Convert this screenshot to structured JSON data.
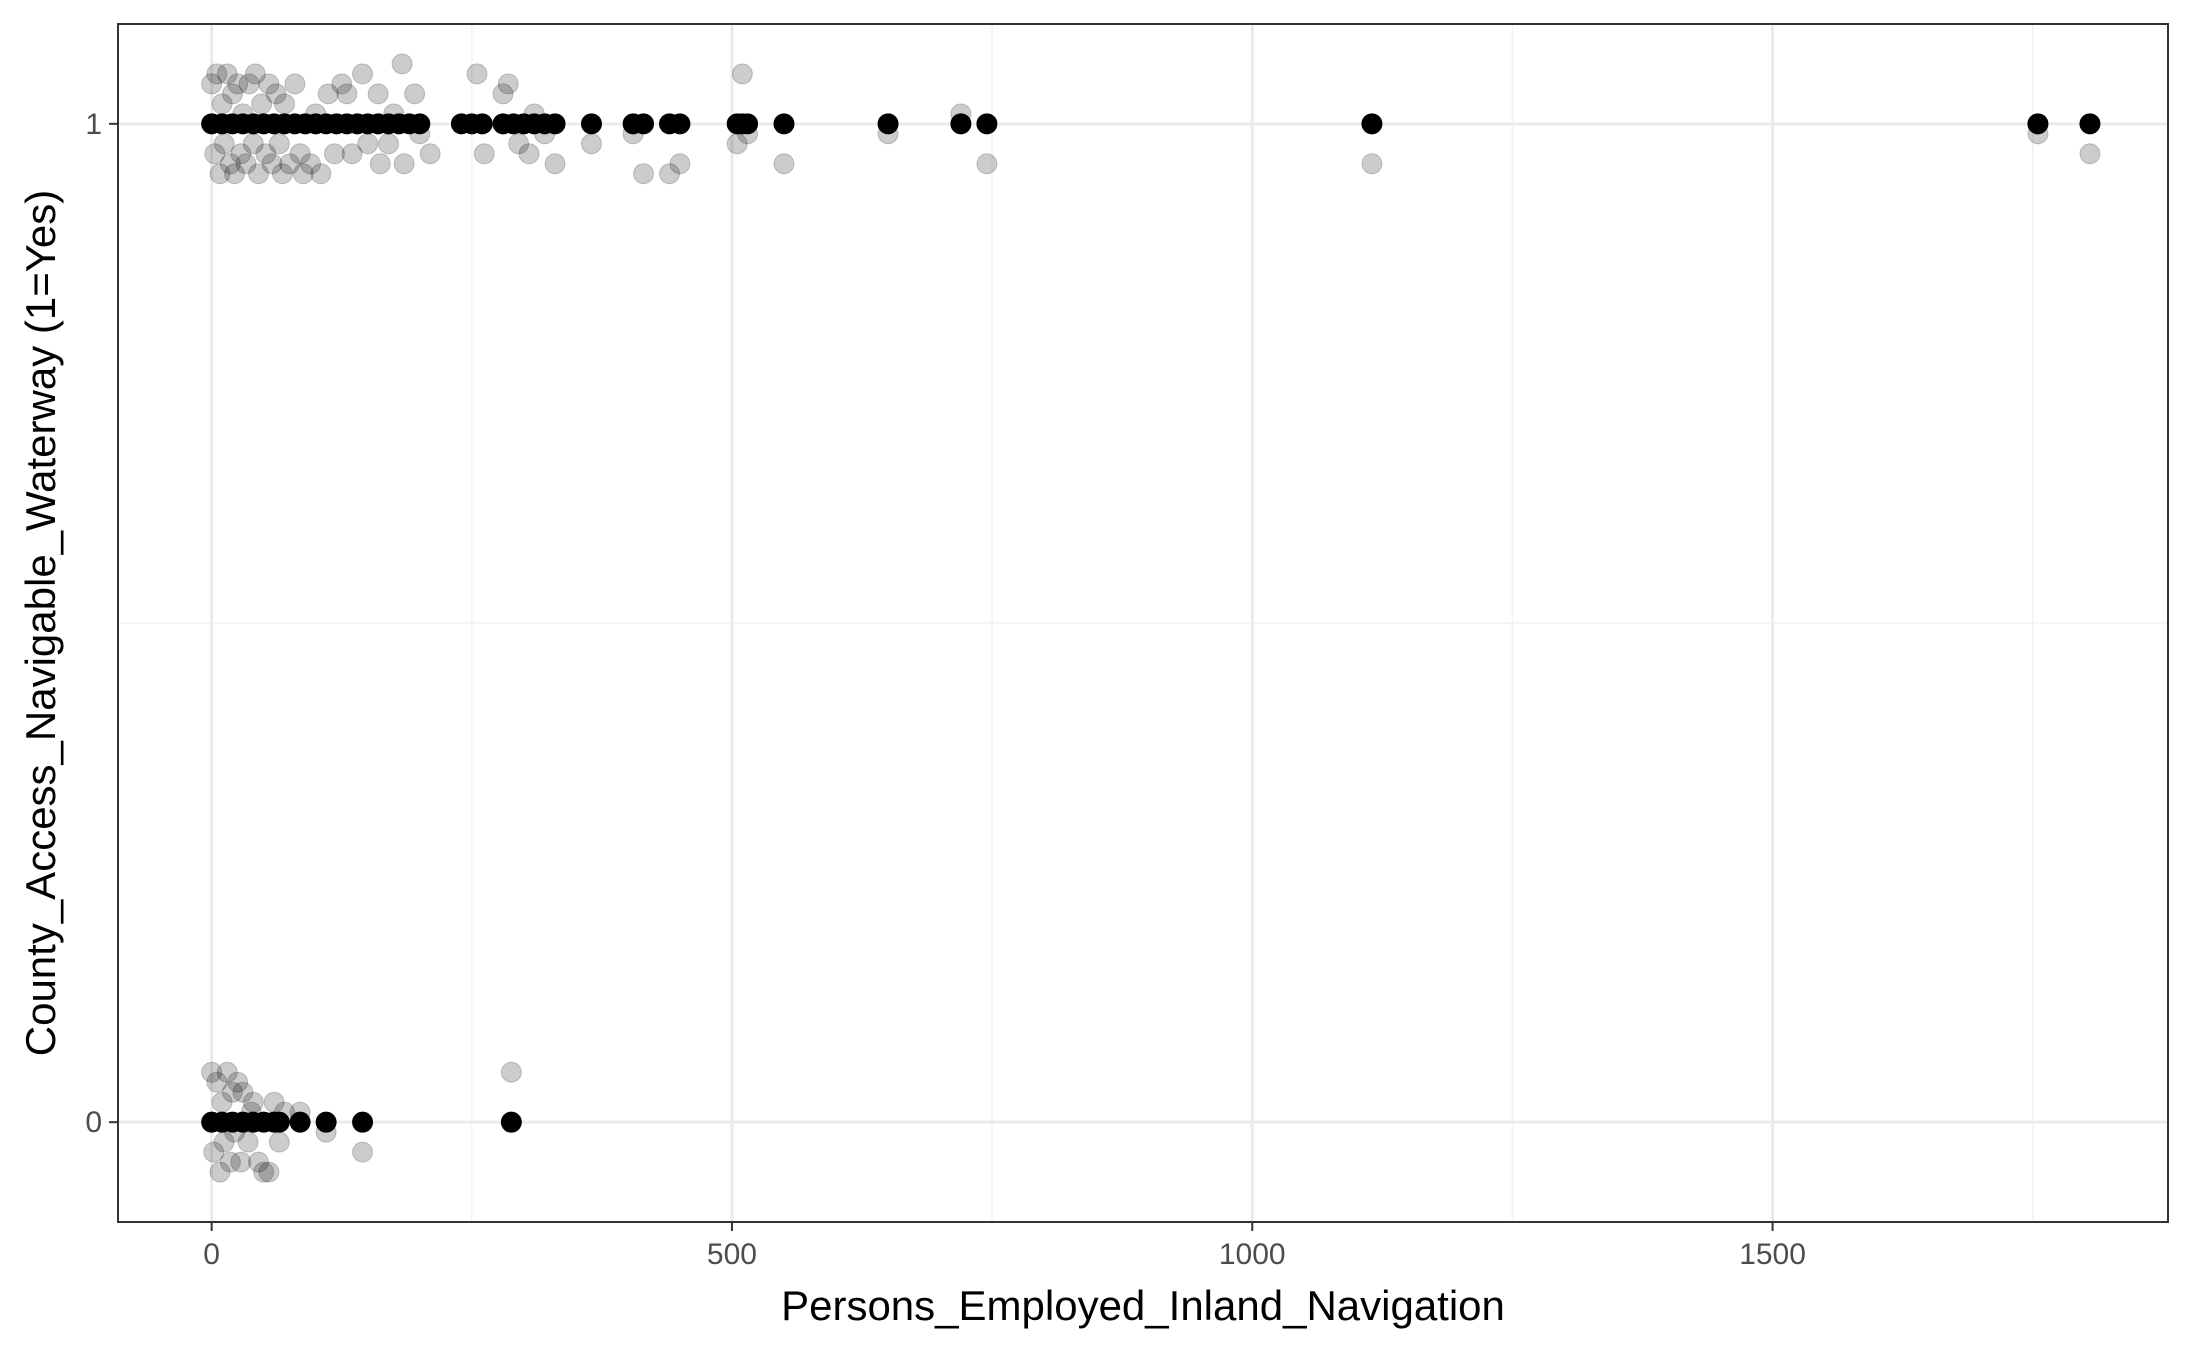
{
  "chart_data": {
    "type": "scatter",
    "title": "",
    "xlabel": "Persons_Employed_Inland_Navigation",
    "ylabel": "County_Access_Navigable_Waterway (1=Yes)",
    "xlim": [
      -90,
      1880
    ],
    "ylim": [
      -0.1,
      1.1
    ],
    "x_ticks": [
      0,
      500,
      1000,
      1500
    ],
    "x_tick_labels": [
      "0",
      "500",
      "1000",
      "1500"
    ],
    "y_ticks": [
      0,
      1
    ],
    "y_tick_labels": [
      "0",
      "1"
    ],
    "grid": true,
    "theme": "black-and-white",
    "legend": "none",
    "series": [
      {
        "role": "jittered-points",
        "color": "#000000",
        "opacity": 0.2,
        "points": [
          [
            0,
            1.04
          ],
          [
            3,
            0.97
          ],
          [
            5,
            1.05
          ],
          [
            8,
            0.95
          ],
          [
            10,
            1.02
          ],
          [
            12,
            0.98
          ],
          [
            15,
            1.05
          ],
          [
            18,
            0.96
          ],
          [
            20,
            1.03
          ],
          [
            22,
            0.95
          ],
          [
            25,
            1.04
          ],
          [
            28,
            0.97
          ],
          [
            30,
            1.01
          ],
          [
            33,
            0.96
          ],
          [
            36,
            1.04
          ],
          [
            40,
            0.98
          ],
          [
            42,
            1.05
          ],
          [
            45,
            0.95
          ],
          [
            48,
            1.02
          ],
          [
            52,
            0.97
          ],
          [
            55,
            1.04
          ],
          [
            58,
            0.96
          ],
          [
            62,
            1.03
          ],
          [
            65,
            0.98
          ],
          [
            68,
            0.95
          ],
          [
            70,
            1.02
          ],
          [
            75,
            0.96
          ],
          [
            80,
            1.04
          ],
          [
            85,
            0.97
          ],
          [
            88,
            0.95
          ],
          [
            95,
            0.96
          ],
          [
            100,
            1.01
          ],
          [
            105,
            0.95
          ],
          [
            112,
            1.03
          ],
          [
            118,
            0.97
          ],
          [
            125,
            1.04
          ],
          [
            130,
            1.03
          ],
          [
            135,
            0.97
          ],
          [
            140,
            1.0
          ],
          [
            145,
            1.05
          ],
          [
            150,
            0.98
          ],
          [
            160,
            1.03
          ],
          [
            162,
            0.96
          ],
          [
            170,
            0.98
          ],
          [
            175,
            1.01
          ],
          [
            183,
            1.06
          ],
          [
            185,
            0.96
          ],
          [
            195,
            1.03
          ],
          [
            200,
            0.99
          ],
          [
            210,
            0.97
          ],
          [
            255,
            1.05
          ],
          [
            262,
            0.97
          ],
          [
            280,
            1.03
          ],
          [
            285,
            1.04
          ],
          [
            295,
            0.98
          ],
          [
            305,
            0.97
          ],
          [
            310,
            1.01
          ],
          [
            320,
            0.99
          ],
          [
            330,
            0.96
          ],
          [
            365,
            0.98
          ],
          [
            405,
            0.99
          ],
          [
            415,
            0.95
          ],
          [
            440,
            0.95
          ],
          [
            450,
            0.96
          ],
          [
            505,
            0.98
          ],
          [
            510,
            1.05
          ],
          [
            515,
            0.99
          ],
          [
            550,
            0.96
          ],
          [
            650,
            0.99
          ],
          [
            720,
            1.01
          ],
          [
            745,
            0.96
          ],
          [
            1115,
            0.96
          ],
          [
            1755,
            0.99
          ],
          [
            1805,
            0.97
          ],
          [
            0,
            0.05
          ],
          [
            2,
            -0.03
          ],
          [
            5,
            0.04
          ],
          [
            8,
            -0.05
          ],
          [
            10,
            0.02
          ],
          [
            12,
            -0.02
          ],
          [
            15,
            0.05
          ],
          [
            18,
            -0.04
          ],
          [
            20,
            0.03
          ],
          [
            22,
            -0.01
          ],
          [
            25,
            0.04
          ],
          [
            28,
            -0.04
          ],
          [
            30,
            0.03
          ],
          [
            35,
            -0.02
          ],
          [
            38,
            0.01
          ],
          [
            40,
            0.02
          ],
          [
            45,
            -0.04
          ],
          [
            50,
            -0.05
          ],
          [
            55,
            -0.05
          ],
          [
            60,
            0.02
          ],
          [
            65,
            -0.02
          ],
          [
            70,
            0.01
          ],
          [
            85,
            0.01
          ],
          [
            110,
            -0.01
          ],
          [
            145,
            -0.03
          ],
          [
            288,
            0.05
          ]
        ]
      },
      {
        "role": "original-points",
        "color": "#000000",
        "opacity": 1,
        "points": [
          [
            0,
            1
          ],
          [
            10,
            1
          ],
          [
            20,
            1
          ],
          [
            30,
            1
          ],
          [
            40,
            1
          ],
          [
            50,
            1
          ],
          [
            60,
            1
          ],
          [
            70,
            1
          ],
          [
            80,
            1
          ],
          [
            90,
            1
          ],
          [
            100,
            1
          ],
          [
            110,
            1
          ],
          [
            120,
            1
          ],
          [
            130,
            1
          ],
          [
            140,
            1
          ],
          [
            150,
            1
          ],
          [
            160,
            1
          ],
          [
            170,
            1
          ],
          [
            180,
            1
          ],
          [
            190,
            1
          ],
          [
            200,
            1
          ],
          [
            240,
            1
          ],
          [
            250,
            1
          ],
          [
            260,
            1
          ],
          [
            280,
            1
          ],
          [
            290,
            1
          ],
          [
            300,
            1
          ],
          [
            310,
            1
          ],
          [
            320,
            1
          ],
          [
            330,
            1
          ],
          [
            365,
            1
          ],
          [
            405,
            1
          ],
          [
            415,
            1
          ],
          [
            440,
            1
          ],
          [
            450,
            1
          ],
          [
            505,
            1
          ],
          [
            510,
            1
          ],
          [
            515,
            1
          ],
          [
            550,
            1
          ],
          [
            650,
            1
          ],
          [
            720,
            1
          ],
          [
            745,
            1
          ],
          [
            1115,
            1
          ],
          [
            1755,
            1
          ],
          [
            1805,
            1
          ],
          [
            0,
            0
          ],
          [
            10,
            0
          ],
          [
            20,
            0
          ],
          [
            30,
            0
          ],
          [
            40,
            0
          ],
          [
            50,
            0
          ],
          [
            60,
            0
          ],
          [
            65,
            0
          ],
          [
            85,
            0
          ],
          [
            110,
            0
          ],
          [
            145,
            0
          ],
          [
            288,
            0
          ]
        ]
      }
    ]
  }
}
